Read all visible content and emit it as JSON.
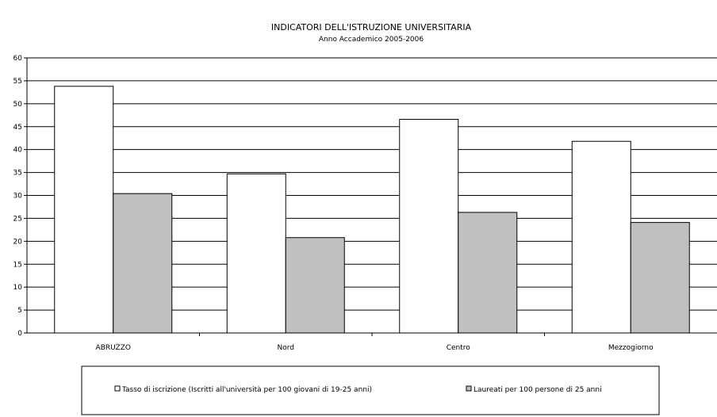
{
  "chart_data": {
    "type": "bar",
    "title": "INDICATORI DELL'ISTRUZIONE UNIVERSITARIA",
    "subtitle": "Anno Accademico 2005-2006",
    "categories": [
      "ABRUZZO",
      "Nord",
      "Centro",
      "Mezzogiorno"
    ],
    "series": [
      {
        "name": "Tasso di iscrizione (Iscritti all'università per 100 giovani di 19-25 anni)",
        "values": [
          53.8,
          34.7,
          46.6,
          41.8
        ],
        "color": "#ffffff"
      },
      {
        "name": "Laureati per 100 persone di 25 anni",
        "values": [
          30.4,
          20.8,
          26.3,
          24.1
        ],
        "color": "#c0c0c0"
      }
    ],
    "ylim": [
      0,
      60
    ],
    "yticks": [
      0,
      5,
      10,
      15,
      20,
      25,
      30,
      35,
      40,
      45,
      50,
      55,
      60
    ],
    "grid": true,
    "legend_position": "bottom"
  }
}
